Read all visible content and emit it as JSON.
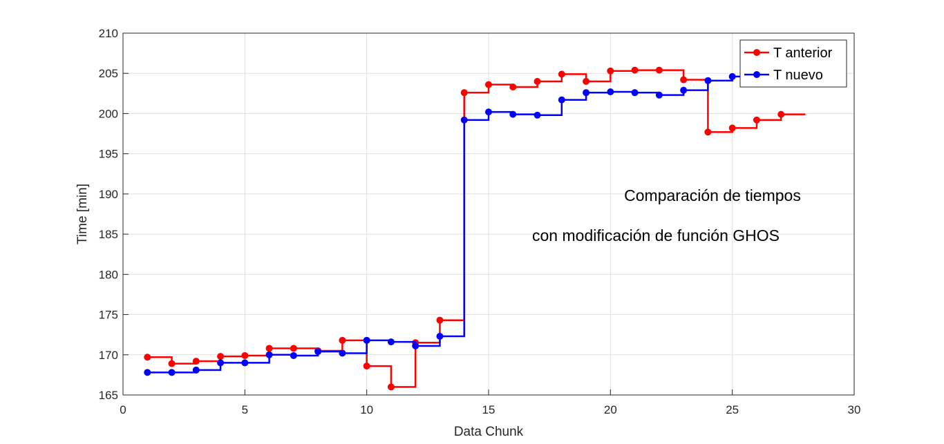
{
  "chart_data": {
    "type": "line",
    "title": "",
    "xlabel": "Data Chunk",
    "ylabel": "Time [min]",
    "xlim": [
      0,
      30
    ],
    "ylim": [
      165,
      210
    ],
    "xticks": [
      "0",
      "5",
      "10",
      "15",
      "20",
      "25",
      "30"
    ],
    "yticks": [
      "165",
      "170",
      "175",
      "180",
      "185",
      "190",
      "195",
      "200",
      "205",
      "210"
    ],
    "grid": true,
    "legend_position": "top-right",
    "line_style": "stairs-with-markers",
    "annotations": [
      "Comparación de tiempos",
      "con modificación de función GHOS"
    ],
    "x": [
      1,
      2,
      3,
      4,
      5,
      6,
      7,
      8,
      9,
      10,
      11,
      12,
      13,
      14,
      15,
      16,
      17,
      18,
      19,
      20,
      21,
      22,
      23,
      24,
      25,
      26,
      27
    ],
    "series": [
      {
        "name": "T anterior",
        "color": "#ff0000",
        "values": [
          169.7,
          168.9,
          169.2,
          169.8,
          169.9,
          170.8,
          170.8,
          170.5,
          171.8,
          168.6,
          166.0,
          171.5,
          174.3,
          202.6,
          203.6,
          203.3,
          204.0,
          204.9,
          204.0,
          205.3,
          205.4,
          205.4,
          204.2,
          197.7,
          198.2,
          199.2,
          199.9
        ]
      },
      {
        "name": "T nuevo",
        "color": "#0000ff",
        "values": [
          167.8,
          167.8,
          168.1,
          169.0,
          169.0,
          170.0,
          169.9,
          170.4,
          170.2,
          171.8,
          171.6,
          171.1,
          172.3,
          199.2,
          200.2,
          199.9,
          199.8,
          201.7,
          202.6,
          202.7,
          202.6,
          202.3,
          202.9,
          204.1,
          204.6,
          null,
          null
        ]
      }
    ]
  }
}
